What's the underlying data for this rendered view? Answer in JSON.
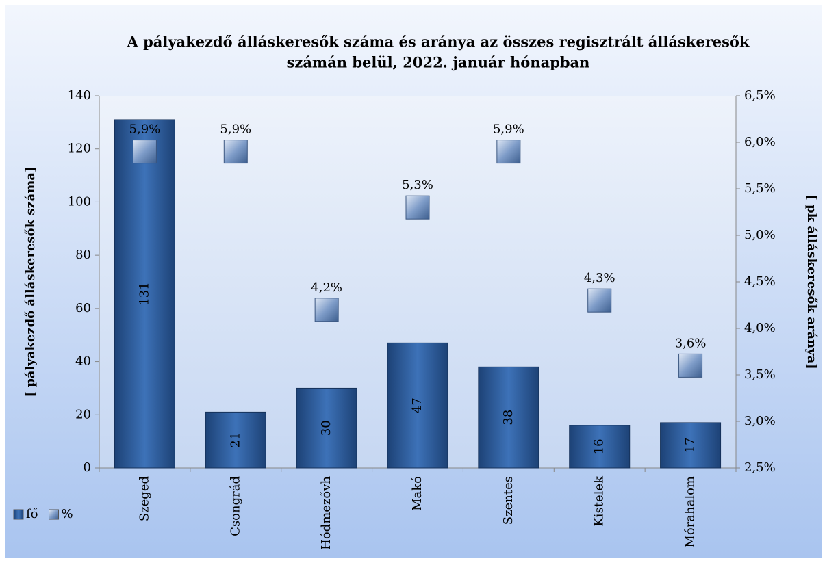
{
  "chart_data": {
    "type": "bar",
    "title": "A pályakezdő álláskeresők száma és aránya az összes regisztrált álláskeresők",
    "subtitle": "számán belül, 2022. január hónapban",
    "y_label": "[ pályakezdő  álláskeresők száma]",
    "y2_label": "[ pk álláskeresők aránya]",
    "categories": [
      "Szeged",
      "Csongrád",
      "Hódmezővh",
      "Makó",
      "Szentes",
      "Kistelek",
      "Mórahalom"
    ],
    "series": [
      {
        "name": "fő",
        "color": "#2e5f9e",
        "values": [
          131,
          21,
          30,
          47,
          38,
          16,
          17
        ]
      },
      {
        "name": "%",
        "color": "#8fa8cc",
        "axis": "y2",
        "type": "scatter",
        "values": [
          5.9,
          5.9,
          4.2,
          5.3,
          5.9,
          4.3,
          3.6
        ],
        "value_labels": [
          "5,9%",
          "5,9%",
          "4,2%",
          "5,3%",
          "5,9%",
          "4,3%",
          "3,6%"
        ]
      }
    ],
    "ylim": [
      0,
      140
    ],
    "yticks": [
      0,
      20,
      40,
      60,
      80,
      100,
      120,
      140
    ],
    "y2lim": [
      2.5,
      6.5
    ],
    "y2ticks": [
      {
        "value": 2.5,
        "label": "2,5%"
      },
      {
        "value": 3.0,
        "label": "3,0%"
      },
      {
        "value": 3.5,
        "label": "3,5%"
      },
      {
        "value": 4.0,
        "label": "4,0%"
      },
      {
        "value": 4.5,
        "label": "4,5%"
      },
      {
        "value": 5.0,
        "label": "5,0%"
      },
      {
        "value": 5.5,
        "label": "5,5%"
      },
      {
        "value": 6.0,
        "label": "6,0%"
      },
      {
        "value": 6.5,
        "label": "6,5%"
      }
    ],
    "legend": "bottom-left"
  }
}
